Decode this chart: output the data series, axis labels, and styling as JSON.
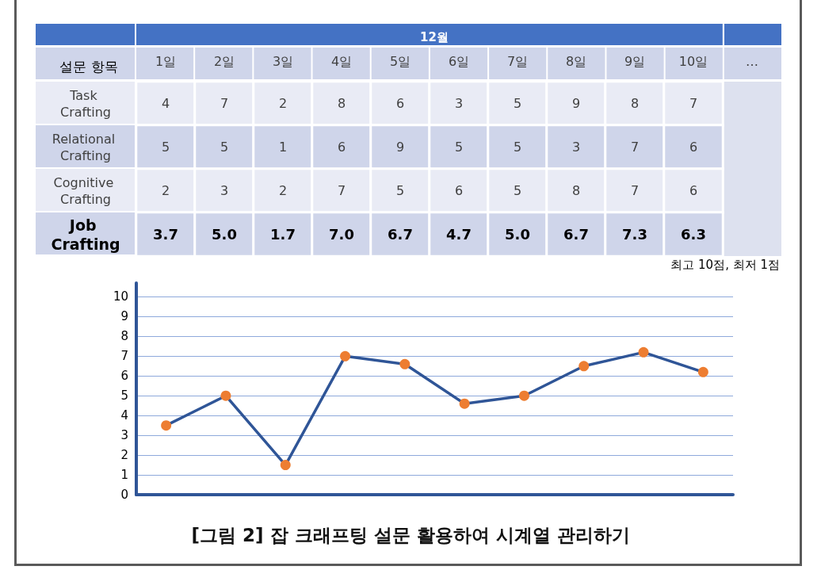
{
  "chart_data": [
    {
      "type": "heatmap",
      "title": "12월",
      "ylabel": "설문 항목",
      "categories": [
        "1일",
        "2일",
        "3일",
        "4일",
        "5일",
        "6일",
        "7일",
        "8일",
        "9일",
        "10일",
        "…"
      ],
      "y_categories": [
        "Task Crafting",
        "Relational Crafting",
        "Cognitive Crafting",
        "Job Crafting"
      ],
      "cells": [
        [
          4,
          7,
          2,
          8,
          6,
          3,
          5,
          9,
          8,
          7,
          null
        ],
        [
          5,
          5,
          1,
          6,
          9,
          5,
          5,
          3,
          7,
          6,
          null
        ],
        [
          2,
          3,
          2,
          7,
          5,
          6,
          5,
          8,
          7,
          6,
          null
        ],
        [
          3.7,
          5.0,
          1.7,
          7.0,
          6.7,
          4.7,
          5.0,
          6.7,
          7.3,
          6.3,
          null
        ]
      ],
      "cell_labels": [
        [
          "4",
          "7",
          "2",
          "8",
          "6",
          "3",
          "5",
          "9",
          "8",
          "7",
          null
        ],
        [
          "5",
          "5",
          "1",
          "6",
          "9",
          "5",
          "5",
          "3",
          "7",
          "6",
          null
        ],
        [
          "2",
          "3",
          "2",
          "7",
          "5",
          "6",
          "5",
          "8",
          "7",
          "6",
          null
        ],
        [
          "3.7",
          "5.0",
          "1.7",
          "7.0",
          "6.7",
          "4.7",
          "5.0",
          "6.7",
          "7.3",
          "6.3",
          null
        ]
      ],
      "annotations": [
        "최고 10점, 최저 1점"
      ]
    },
    {
      "type": "line",
      "title": "[그림 2] 잡 크래프팅 설문 활용하여 시계열 관리하기",
      "categories": [
        null,
        null,
        null,
        null,
        null,
        null,
        null,
        null,
        null,
        null
      ],
      "series": [
        {
          "color": "#2f5597",
          "colors": [
            "#ed7d31",
            "#ed7d31",
            "#ed7d31",
            "#ed7d31",
            "#ed7d31",
            "#ed7d31",
            "#ed7d31",
            "#ed7d31",
            "#ed7d31",
            "#ed7d31"
          ],
          "values": [
            3.5,
            5.0,
            1.5,
            7.0,
            6.6,
            4.6,
            5.0,
            6.5,
            7.2,
            6.2
          ]
        }
      ],
      "ylim": [
        0,
        10.7
      ],
      "yticks": [
        0,
        1,
        2,
        3,
        4,
        5,
        6,
        7,
        8,
        9,
        10
      ],
      "grid": "y",
      "marker": "circle",
      "tick_labels": "y"
    }
  ]
}
